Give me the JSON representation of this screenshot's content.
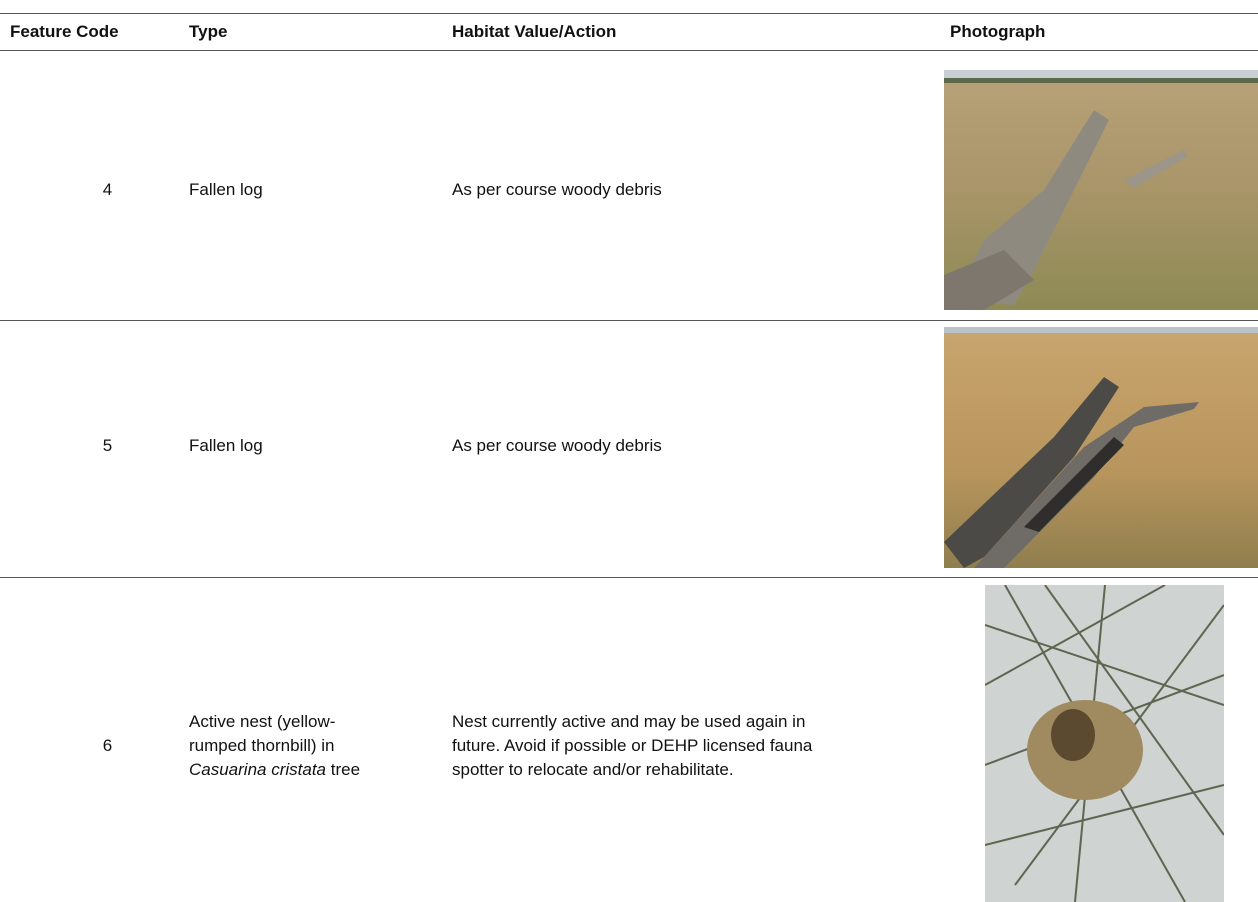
{
  "table": {
    "header": [
      "Feature Code",
      "Type",
      "Habitat Value/Action",
      "Photograph"
    ],
    "rows": [
      {
        "code": "4",
        "type": [
          "Fallen log"
        ],
        "habitat": "As per course woody debris"
      },
      {
        "code": "5",
        "type": [
          "Fallen log"
        ],
        "habitat": "As per course woody debris"
      },
      {
        "code": "6",
        "type": [
          "Active nest (yellow-rumped thornbill) in ",
          "Casuarina cristata",
          " tree"
        ],
        "habitat": "Nest currently active and may be used again in future. Avoid if possible or DEHP licensed fauna spotter to relocate and/or rehabilitate."
      }
    ]
  }
}
